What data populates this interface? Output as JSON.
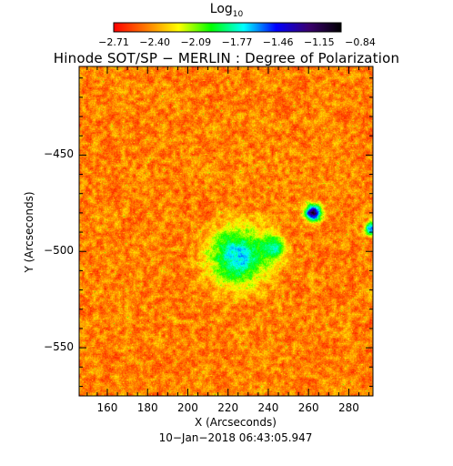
{
  "colorbar": {
    "title": "Log",
    "title_sub": "10",
    "ticks": [
      "−2.71",
      "−2.40",
      "−2.09",
      "−1.77",
      "−1.46",
      "−1.15",
      "−0.84"
    ],
    "colors": [
      "#ff0000",
      "#ff7a00",
      "#ffff00",
      "#00ff00",
      "#00ffff",
      "#0000ff",
      "#3a0070",
      "#000000"
    ]
  },
  "chart_data": {
    "type": "heatmap",
    "title": "Hinode SOT/SP − MERLIN : Degree of Polarization",
    "xlabel": "X (Arcseconds)",
    "ylabel": "Y (Arcseconds)",
    "x_ticks": [
      160,
      180,
      200,
      220,
      240,
      260,
      280
    ],
    "x_tick_labels": [
      "160",
      "180",
      "200",
      "220",
      "240",
      "260",
      "280"
    ],
    "y_ticks": [
      -450,
      -500,
      -550
    ],
    "y_tick_labels": [
      "−450",
      "−500",
      "−550"
    ],
    "xlim": [
      146,
      292
    ],
    "ylim": [
      -575,
      -404
    ],
    "value_range": [
      -2.71,
      -0.84
    ],
    "grid": false,
    "features": [
      {
        "x": 262,
        "y": -480,
        "value": -0.9,
        "spread": 4
      },
      {
        "x": 225,
        "y": -502,
        "value": -1.5,
        "spread": 14
      },
      {
        "x": 242,
        "y": -498,
        "value": -1.6,
        "spread": 6
      },
      {
        "x": 291,
        "y": -488,
        "value": -1.3,
        "spread": 3
      }
    ]
  },
  "timestamp": "10−Jan−2018 06:43:05.947"
}
